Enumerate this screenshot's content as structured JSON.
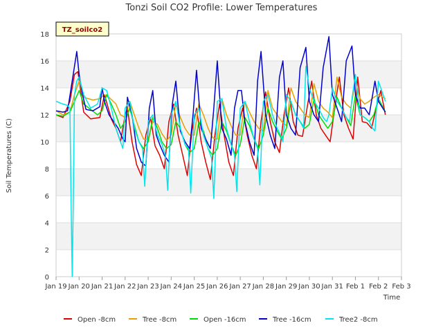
{
  "chart_data": {
    "type": "line",
    "title": "Tonzi Soil CO2 Profile: Lower Temperatures",
    "ylabel": "Soil Temperatures (C)",
    "xlabel": "Time",
    "badge": "TZ_soilco2",
    "ylim": [
      0,
      18
    ],
    "yticks": [
      0,
      2,
      4,
      6,
      8,
      10,
      12,
      14,
      16,
      18
    ],
    "xlim": [
      0,
      15
    ],
    "xticks": [
      {
        "x": 0,
        "label": "Jan 19"
      },
      {
        "x": 1,
        "label": "Jan 20"
      },
      {
        "x": 2,
        "label": "Jan 21"
      },
      {
        "x": 3,
        "label": "Jan 22"
      },
      {
        "x": 4,
        "label": "Jan 23"
      },
      {
        "x": 5,
        "label": "Jan 24"
      },
      {
        "x": 6,
        "label": "Jan 25"
      },
      {
        "x": 7,
        "label": "Jan 26"
      },
      {
        "x": 8,
        "label": "Jan 27"
      },
      {
        "x": 9,
        "label": "Jan 28"
      },
      {
        "x": 10,
        "label": "Jan 29"
      },
      {
        "x": 11,
        "label": "Jan 30"
      },
      {
        "x": 12,
        "label": "Jan 31"
      },
      {
        "x": 13,
        "label": "Feb 1"
      },
      {
        "x": 14,
        "label": "Feb 2"
      },
      {
        "x": 15,
        "label": "Feb 3"
      }
    ],
    "grid_bands": true,
    "legend_position": "bottom",
    "series": [
      {
        "name": "Open -8cm",
        "color": "#dd0000",
        "x": [
          0.0,
          0.3,
          0.6,
          0.8,
          0.95,
          1.2,
          1.5,
          1.9,
          2.1,
          2.4,
          2.6,
          2.8,
          3.0,
          3.1,
          3.3,
          3.5,
          3.7,
          3.9,
          4.1,
          4.3,
          4.5,
          4.7,
          4.9,
          5.1,
          5.3,
          5.5,
          5.7,
          5.9,
          6.1,
          6.3,
          6.5,
          6.7,
          6.9,
          7.1,
          7.3,
          7.5,
          7.7,
          7.9,
          8.1,
          8.3,
          8.5,
          8.7,
          8.9,
          9.1,
          9.3,
          9.5,
          9.7,
          9.9,
          10.1,
          10.3,
          10.5,
          10.7,
          10.9,
          11.1,
          11.3,
          11.5,
          11.7,
          11.9,
          12.1,
          12.3,
          12.5,
          12.7,
          12.9,
          13.1,
          13.3,
          13.5,
          13.7,
          13.9,
          14.1,
          14.3
        ],
        "y": [
          12.0,
          11.8,
          13.0,
          15.0,
          15.2,
          12.2,
          11.7,
          11.8,
          13.5,
          11.7,
          11.0,
          10.0,
          12.0,
          12.5,
          10.0,
          8.3,
          7.5,
          10.5,
          11.8,
          9.7,
          9.0,
          8.0,
          11.5,
          12.8,
          10.5,
          9.0,
          7.5,
          10.8,
          12.5,
          10.0,
          8.5,
          7.2,
          10.5,
          12.8,
          10.5,
          8.5,
          7.5,
          11.0,
          12.5,
          10.5,
          9.0,
          8.0,
          11.5,
          13.7,
          11.5,
          10.0,
          9.2,
          12.0,
          14.0,
          11.5,
          10.5,
          10.4,
          12.5,
          14.5,
          12.0,
          11.0,
          10.5,
          10.0,
          12.5,
          14.8,
          12.0,
          11.0,
          10.2,
          14.8,
          11.5,
          11.4,
          11.0,
          12.5,
          13.8,
          12.0
        ]
      },
      {
        "name": "Tree -8cm",
        "color": "#e69f00",
        "x": [
          0.0,
          0.3,
          0.6,
          0.8,
          1.0,
          1.2,
          1.4,
          1.6,
          1.9,
          2.1,
          2.3,
          2.6,
          2.8,
          3.0,
          3.2,
          3.4,
          3.6,
          3.8,
          4.0,
          4.2,
          4.4,
          4.6,
          4.8,
          5.0,
          5.2,
          5.4,
          5.6,
          5.8,
          6.0,
          6.2,
          6.4,
          6.6,
          6.8,
          7.0,
          7.2,
          7.4,
          7.6,
          7.8,
          8.0,
          8.2,
          8.4,
          8.6,
          8.8,
          9.0,
          9.2,
          9.4,
          9.6,
          9.8,
          10.0,
          10.2,
          10.4,
          10.6,
          10.8,
          11.0,
          11.2,
          11.4,
          11.6,
          11.8,
          12.0,
          12.2,
          12.4,
          12.6,
          12.8,
          13.0,
          13.2,
          13.4,
          13.6,
          13.8,
          14.0,
          14.3
        ],
        "y": [
          12.3,
          12.0,
          12.2,
          13.5,
          14.5,
          13.3,
          13.2,
          13.1,
          13.2,
          13.5,
          13.3,
          12.8,
          12.0,
          11.8,
          13.0,
          12.0,
          11.0,
          10.2,
          10.2,
          11.5,
          11.3,
          10.6,
          10.1,
          10.5,
          12.8,
          11.8,
          11.0,
          10.5,
          10.5,
          12.8,
          12.0,
          11.0,
          10.3,
          10.2,
          13.2,
          12.0,
          11.2,
          10.5,
          10.5,
          13.0,
          12.2,
          11.5,
          11.0,
          10.8,
          13.8,
          12.5,
          12.0,
          11.5,
          11.2,
          14.0,
          13.0,
          12.5,
          12.0,
          11.8,
          14.3,
          13.0,
          12.5,
          12.2,
          11.8,
          14.8,
          13.3,
          12.8,
          12.5,
          14.5,
          13.2,
          12.8,
          13.0,
          13.3,
          13.5,
          13.2
        ]
      },
      {
        "name": "Open -16cm",
        "color": "#00dd00",
        "x": [
          0.0,
          0.3,
          0.6,
          0.8,
          1.0,
          1.2,
          1.5,
          1.8,
          2.0,
          2.2,
          2.4,
          2.6,
          2.8,
          3.0,
          3.2,
          3.4,
          3.6,
          3.8,
          4.0,
          4.2,
          4.4,
          4.6,
          4.8,
          5.0,
          5.2,
          5.4,
          5.6,
          5.8,
          6.0,
          6.2,
          6.4,
          6.6,
          6.8,
          7.0,
          7.2,
          7.4,
          7.6,
          7.8,
          8.0,
          8.2,
          8.4,
          8.6,
          8.8,
          9.0,
          9.2,
          9.4,
          9.6,
          9.8,
          10.0,
          10.2,
          10.4,
          10.6,
          10.8,
          11.0,
          11.2,
          11.4,
          11.6,
          11.8,
          12.0,
          12.2,
          12.4,
          12.6,
          12.8,
          13.0,
          13.2,
          13.4,
          13.6,
          13.8,
          14.0,
          14.3
        ],
        "y": [
          12.0,
          11.9,
          12.2,
          13.0,
          13.8,
          12.8,
          12.4,
          12.0,
          12.3,
          13.5,
          12.8,
          12.0,
          11.0,
          11.5,
          12.5,
          11.2,
          10.0,
          9.5,
          10.0,
          11.8,
          11.0,
          10.0,
          9.5,
          9.8,
          11.5,
          11.0,
          9.8,
          9.2,
          9.5,
          11.5,
          10.8,
          9.5,
          9.0,
          9.5,
          11.5,
          10.8,
          9.8,
          9.0,
          9.8,
          11.8,
          11.2,
          10.2,
          9.5,
          10.5,
          12.5,
          11.5,
          10.8,
          10.2,
          11.0,
          13.0,
          12.0,
          11.5,
          11.0,
          11.3,
          13.2,
          12.0,
          11.5,
          11.0,
          11.5,
          13.3,
          12.5,
          11.8,
          11.2,
          13.5,
          12.0,
          11.8,
          11.5,
          12.0,
          13.2,
          12.2
        ]
      },
      {
        "name": "Tree -16cm",
        "color": "#0000cc",
        "x": [
          0.0,
          0.3,
          0.5,
          0.7,
          0.9,
          1.0,
          1.15,
          1.3,
          1.6,
          1.9,
          2.0,
          2.1,
          2.3,
          2.5,
          2.7,
          2.9,
          3.0,
          3.1,
          3.3,
          3.5,
          3.7,
          3.9,
          4.05,
          4.2,
          4.35,
          4.5,
          4.7,
          4.9,
          5.05,
          5.2,
          5.4,
          5.6,
          5.8,
          5.95,
          6.1,
          6.3,
          6.5,
          6.7,
          6.85,
          7.0,
          7.2,
          7.4,
          7.6,
          7.75,
          7.9,
          8.05,
          8.2,
          8.4,
          8.6,
          8.75,
          8.9,
          9.1,
          9.3,
          9.5,
          9.7,
          9.85,
          10.0,
          10.2,
          10.4,
          10.6,
          10.85,
          11.0,
          11.2,
          11.4,
          11.6,
          11.85,
          12.0,
          12.2,
          12.4,
          12.6,
          12.85,
          13.0,
          13.2,
          13.4,
          13.6,
          13.85,
          14.0,
          14.3
        ],
        "y": [
          12.3,
          12.2,
          12.3,
          14.5,
          16.7,
          15.0,
          13.5,
          12.4,
          12.3,
          12.6,
          14.0,
          13.0,
          12.0,
          11.5,
          11.0,
          10.2,
          10.0,
          13.3,
          12.0,
          9.5,
          8.5,
          8.2,
          12.5,
          13.8,
          10.5,
          9.8,
          9.0,
          8.5,
          12.8,
          14.5,
          10.8,
          10.0,
          9.5,
          12.0,
          15.3,
          11.0,
          10.2,
          9.5,
          12.5,
          16.0,
          11.0,
          10.2,
          9.0,
          12.5,
          13.8,
          13.8,
          11.5,
          10.0,
          9.0,
          14.5,
          16.7,
          12.0,
          10.5,
          9.5,
          14.8,
          16.0,
          12.0,
          11.0,
          10.5,
          15.5,
          17.0,
          13.0,
          12.0,
          11.5,
          15.5,
          17.8,
          13.5,
          12.5,
          11.5,
          16.0,
          17.1,
          13.5,
          12.5,
          12.5,
          12.0,
          14.5,
          13.0,
          12.2
        ]
      },
      {
        "name": "Tree2 -8cm",
        "color": "#00e5ee",
        "x": [
          0.0,
          0.3,
          0.5,
          0.6,
          0.65,
          0.7,
          0.75,
          0.8,
          0.9,
          1.0,
          1.2,
          1.5,
          1.8,
          2.0,
          2.2,
          2.4,
          2.6,
          2.8,
          2.9,
          3.0,
          3.2,
          3.4,
          3.6,
          3.75,
          3.85,
          4.0,
          4.2,
          4.4,
          4.6,
          4.75,
          4.85,
          5.0,
          5.2,
          5.4,
          5.6,
          5.75,
          5.85,
          6.0,
          6.2,
          6.4,
          6.6,
          6.75,
          6.85,
          7.0,
          7.2,
          7.4,
          7.6,
          7.75,
          7.85,
          8.0,
          8.2,
          8.4,
          8.6,
          8.75,
          8.85,
          9.0,
          9.2,
          9.4,
          9.6,
          9.75,
          9.85,
          10.0,
          10.2,
          10.4,
          10.6,
          10.75,
          10.85,
          11.0,
          11.2,
          11.4,
          11.6,
          11.75,
          11.85,
          12.0,
          12.2,
          12.4,
          12.6,
          12.75,
          12.85,
          13.0,
          13.2,
          13.4,
          13.6,
          13.75,
          13.85,
          14.0,
          14.3
        ],
        "y": [
          13.0,
          12.8,
          12.7,
          12.5,
          6.0,
          0.0,
          6.0,
          13.5,
          14.5,
          14.8,
          13.5,
          12.5,
          12.8,
          14.0,
          13.8,
          12.5,
          11.0,
          10.0,
          9.5,
          12.5,
          13.0,
          11.0,
          10.0,
          9.5,
          6.7,
          11.5,
          12.0,
          10.5,
          9.8,
          9.0,
          6.4,
          12.0,
          13.0,
          11.0,
          9.8,
          9.5,
          6.2,
          12.0,
          12.5,
          10.5,
          9.5,
          8.8,
          5.8,
          13.0,
          13.2,
          11.0,
          9.8,
          9.0,
          6.3,
          12.5,
          13.0,
          11.5,
          10.2,
          9.5,
          6.8,
          13.0,
          13.5,
          12.0,
          11.0,
          10.5,
          10.0,
          13.5,
          13.0,
          12.0,
          11.5,
          11.0,
          15.6,
          14.0,
          13.0,
          12.5,
          11.8,
          11.5,
          12.0,
          14.0,
          13.0,
          12.5,
          11.8,
          11.5,
          13.2,
          15.0,
          12.0,
          11.8,
          11.5,
          11.0,
          10.8,
          14.5,
          13.0
        ]
      }
    ]
  }
}
